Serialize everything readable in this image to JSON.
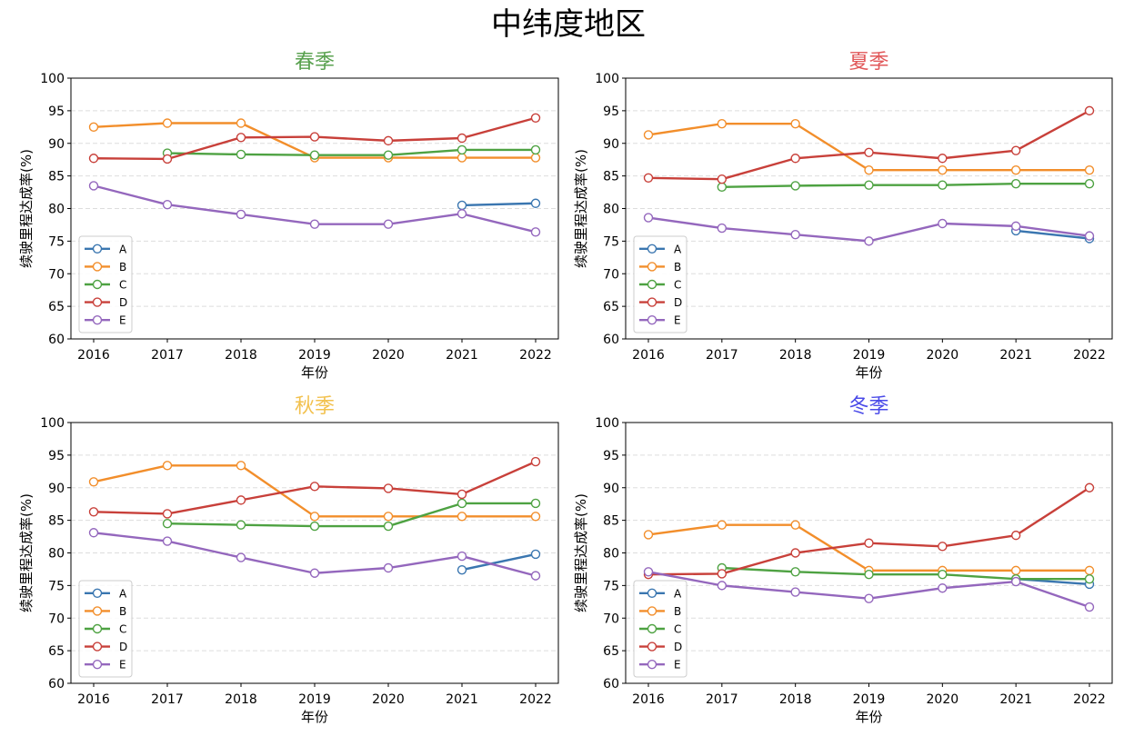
{
  "figure": {
    "title": "中纬度地区",
    "xlabel": "年份",
    "ylabel": "续驶里程达成率(%)"
  },
  "chart_data": [
    {
      "type": "line",
      "title": "春季",
      "title_color": "#59a14f",
      "xlabel": "年份",
      "ylabel": "续驶里程达成率(%)",
      "x": [
        2016,
        2017,
        2018,
        2019,
        2020,
        2021,
        2022
      ],
      "ylim": [
        60,
        100
      ],
      "yticks": [
        60,
        65,
        70,
        75,
        80,
        85,
        90,
        95,
        100
      ],
      "grid": "y-dashed",
      "legend": "lower-left",
      "series": [
        {
          "name": "A",
          "color": "#3a76b0",
          "values": [
            null,
            null,
            null,
            null,
            null,
            80.5,
            80.8
          ]
        },
        {
          "name": "B",
          "color": "#f28e2b",
          "values": [
            92.5,
            93.1,
            93.1,
            87.8,
            87.8,
            87.8,
            87.8
          ]
        },
        {
          "name": "C",
          "color": "#4ea242",
          "values": [
            null,
            88.5,
            88.3,
            88.2,
            88.2,
            89.0,
            89.0
          ]
        },
        {
          "name": "D",
          "color": "#c8403a",
          "values": [
            87.7,
            87.6,
            90.9,
            91.0,
            90.4,
            90.8,
            93.9
          ]
        },
        {
          "name": "E",
          "color": "#9467bd",
          "values": [
            83.5,
            80.6,
            79.1,
            77.6,
            77.6,
            79.2,
            76.4
          ]
        }
      ]
    },
    {
      "type": "line",
      "title": "夏季",
      "title_color": "#e15759",
      "xlabel": "年份",
      "ylabel": "续驶里程达成率(%)",
      "x": [
        2016,
        2017,
        2018,
        2019,
        2020,
        2021,
        2022
      ],
      "ylim": [
        60,
        100
      ],
      "yticks": [
        60,
        65,
        70,
        75,
        80,
        85,
        90,
        95,
        100
      ],
      "grid": "y-dashed",
      "legend": "lower-left",
      "series": [
        {
          "name": "A",
          "color": "#3a76b0",
          "values": [
            null,
            null,
            null,
            null,
            null,
            76.6,
            75.4
          ]
        },
        {
          "name": "B",
          "color": "#f28e2b",
          "values": [
            91.3,
            93.0,
            93.0,
            85.9,
            85.9,
            85.9,
            85.9
          ]
        },
        {
          "name": "C",
          "color": "#4ea242",
          "values": [
            null,
            83.3,
            83.5,
            83.6,
            83.6,
            83.8,
            83.8
          ]
        },
        {
          "name": "D",
          "color": "#c8403a",
          "values": [
            84.7,
            84.5,
            87.7,
            88.6,
            87.7,
            88.9,
            95.0
          ]
        },
        {
          "name": "E",
          "color": "#9467bd",
          "values": [
            78.6,
            77.0,
            76.0,
            75.0,
            77.7,
            77.3,
            75.8
          ]
        }
      ]
    },
    {
      "type": "line",
      "title": "秋季",
      "title_color": "#f2c14e",
      "xlabel": "年份",
      "ylabel": "续驶里程达成率(%)",
      "x": [
        2016,
        2017,
        2018,
        2019,
        2020,
        2021,
        2022
      ],
      "ylim": [
        60,
        100
      ],
      "yticks": [
        60,
        65,
        70,
        75,
        80,
        85,
        90,
        95,
        100
      ],
      "grid": "y-dashed",
      "legend": "lower-left",
      "series": [
        {
          "name": "A",
          "color": "#3a76b0",
          "values": [
            null,
            null,
            null,
            null,
            null,
            77.4,
            79.8
          ]
        },
        {
          "name": "B",
          "color": "#f28e2b",
          "values": [
            90.9,
            93.4,
            93.4,
            85.6,
            85.6,
            85.6,
            85.6
          ]
        },
        {
          "name": "C",
          "color": "#4ea242",
          "values": [
            null,
            84.5,
            84.3,
            84.1,
            84.1,
            87.6,
            87.6
          ]
        },
        {
          "name": "D",
          "color": "#c8403a",
          "values": [
            86.3,
            86.0,
            88.1,
            90.2,
            89.9,
            89.0,
            94.0
          ]
        },
        {
          "name": "E",
          "color": "#9467bd",
          "values": [
            83.1,
            81.8,
            79.3,
            76.9,
            77.7,
            79.5,
            76.5
          ]
        }
      ]
    },
    {
      "type": "line",
      "title": "冬季",
      "title_color": "#4a4ae8",
      "xlabel": "年份",
      "ylabel": "续驶里程达成率(%)",
      "x": [
        2016,
        2017,
        2018,
        2019,
        2020,
        2021,
        2022
      ],
      "ylim": [
        60,
        100
      ],
      "yticks": [
        60,
        65,
        70,
        75,
        80,
        85,
        90,
        95,
        100
      ],
      "grid": "y-dashed",
      "legend": "lower-left",
      "series": [
        {
          "name": "A",
          "color": "#3a76b0",
          "values": [
            null,
            null,
            null,
            null,
            null,
            76.0,
            75.2
          ]
        },
        {
          "name": "B",
          "color": "#f28e2b",
          "values": [
            82.8,
            84.3,
            84.3,
            77.3,
            77.3,
            77.3,
            77.3
          ]
        },
        {
          "name": "C",
          "color": "#4ea242",
          "values": [
            null,
            77.7,
            77.1,
            76.7,
            76.7,
            76.0,
            76.0
          ]
        },
        {
          "name": "D",
          "color": "#c8403a",
          "values": [
            76.7,
            76.8,
            80.0,
            81.5,
            81.0,
            82.7,
            90.0
          ]
        },
        {
          "name": "E",
          "color": "#9467bd",
          "values": [
            77.1,
            75.0,
            74.0,
            73.0,
            74.6,
            75.6,
            71.7
          ]
        }
      ]
    }
  ]
}
